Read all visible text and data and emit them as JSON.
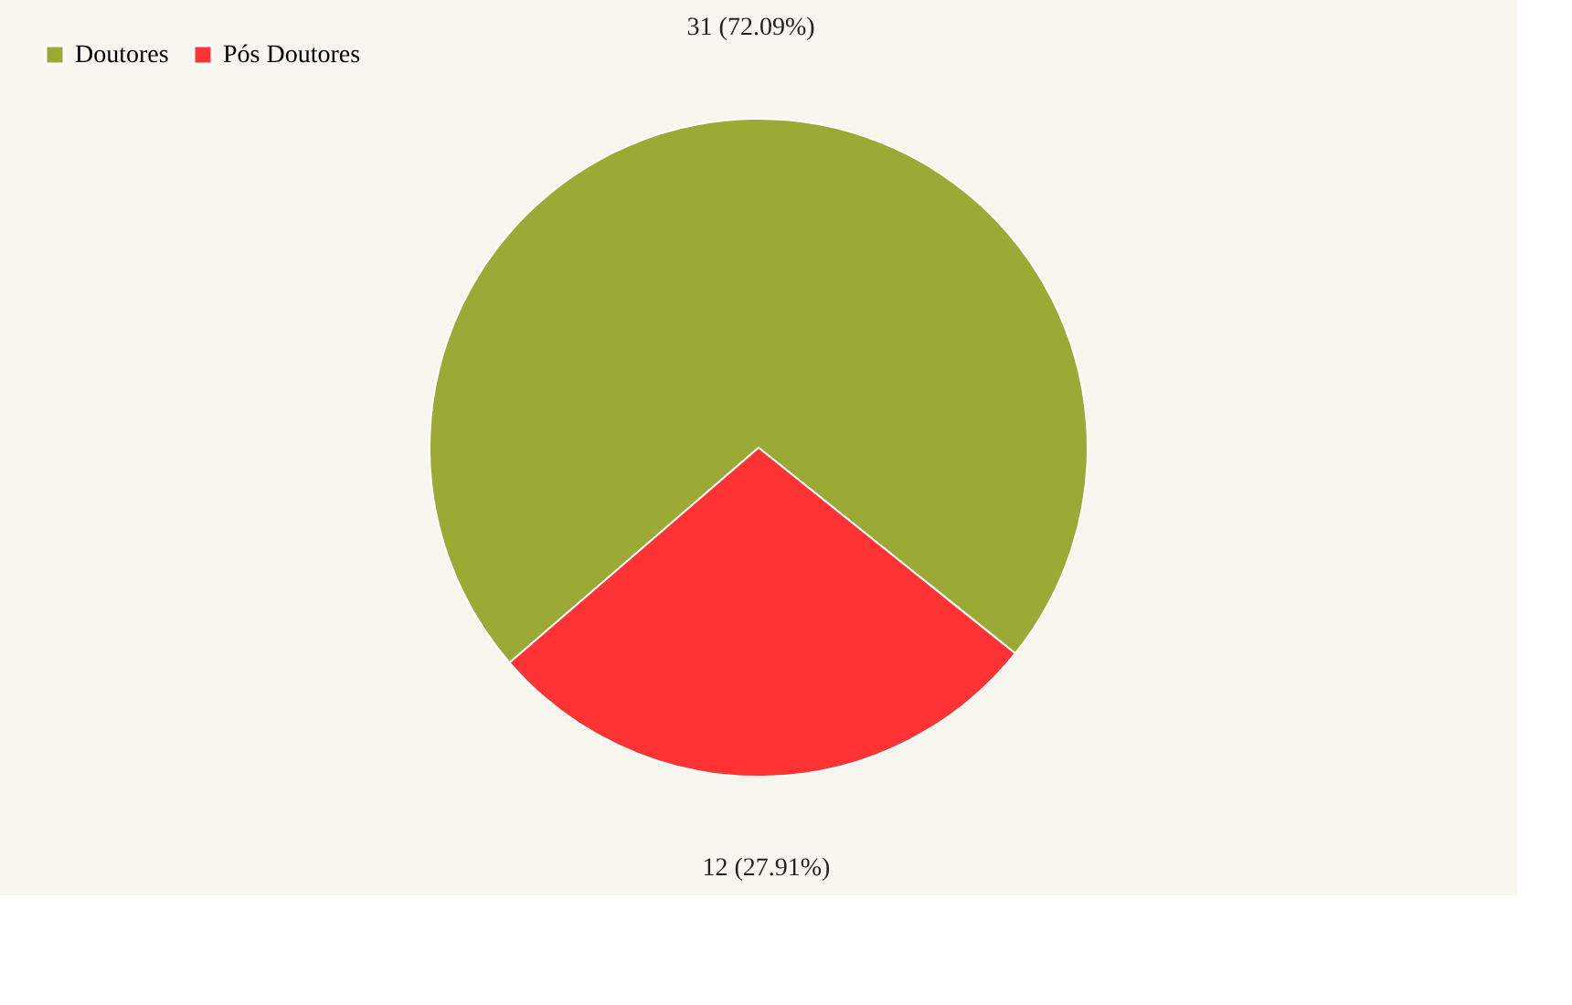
{
  "chart_data": {
    "type": "pie",
    "categories": [
      "Doutores",
      "Pós Doutores"
    ],
    "values": [
      31,
      12
    ],
    "colors": [
      "#9aaa35",
      "#ff3333"
    ],
    "value_labels": [
      "31 (72.09%)",
      "12 (27.91%)"
    ],
    "legend": "top left"
  }
}
